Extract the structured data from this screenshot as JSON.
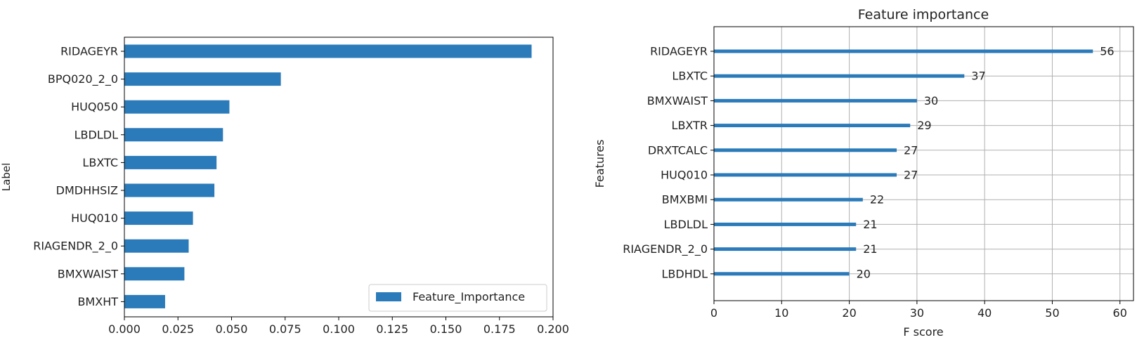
{
  "chart_data": [
    {
      "type": "bar",
      "orientation": "horizontal",
      "title": "",
      "xlabel": "",
      "ylabel": "Label",
      "xlim": [
        0,
        0.2
      ],
      "xticks": [
        "0.000",
        "0.025",
        "0.050",
        "0.075",
        "0.100",
        "0.125",
        "0.150",
        "0.175",
        "0.200"
      ],
      "categories": [
        "RIDAGEYR",
        "BPQ020_2_0",
        "HUQ050",
        "LBDLDL",
        "LBXTC",
        "DMDHHSIZ",
        "HUQ010",
        "RIAGENDR_2_0",
        "BMXWAIST",
        "BMXHT"
      ],
      "series": [
        {
          "name": "Feature_Importance",
          "values": [
            0.19,
            0.073,
            0.049,
            0.046,
            0.043,
            0.042,
            0.032,
            0.03,
            0.028,
            0.019
          ]
        }
      ],
      "legend": "lower-right",
      "grid": false,
      "color": "#2b7bba"
    },
    {
      "type": "bar",
      "orientation": "horizontal",
      "title": "Feature importance",
      "xlabel": "F score",
      "ylabel": "Features",
      "xlim": [
        0,
        62
      ],
      "xticks": [
        "0",
        "10",
        "20",
        "30",
        "40",
        "50",
        "60"
      ],
      "categories": [
        "RIDAGEYR",
        "LBXTC",
        "BMXWAIST",
        "LBXTR",
        "DRXTCALC",
        "HUQ010",
        "BMXBMI",
        "LBDLDL",
        "RIAGENDR_2_0",
        "LBDHDL"
      ],
      "values": [
        56,
        37,
        30,
        29,
        27,
        27,
        22,
        21,
        21,
        20
      ],
      "data_labels": [
        "56",
        "37",
        "30",
        "29",
        "27",
        "27",
        "22",
        "21",
        "21",
        "20"
      ],
      "grid": true,
      "color": "#2b7bba"
    }
  ]
}
